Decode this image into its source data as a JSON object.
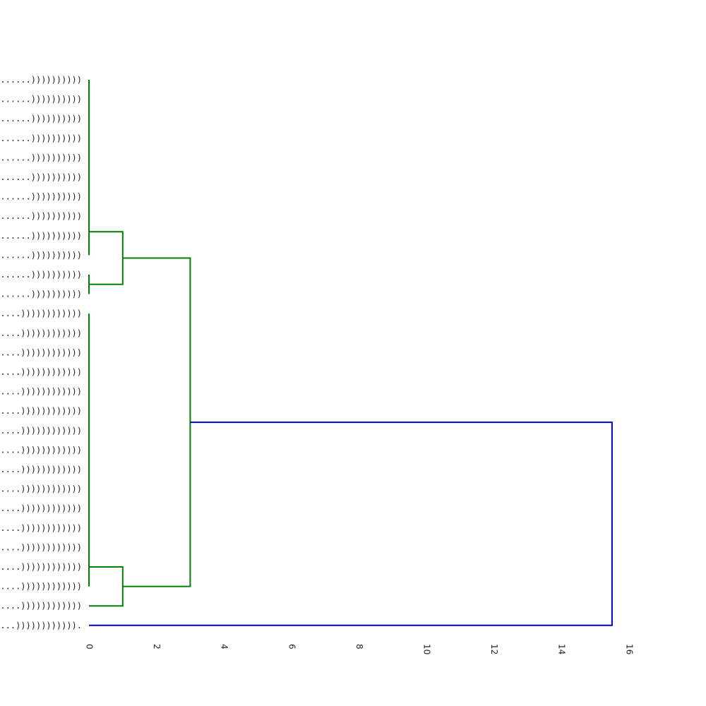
{
  "chart_data": {
    "type": "dendrogram",
    "orientation": "left",
    "xlim": [
      0,
      16
    ],
    "x_ticks": [
      0,
      2,
      4,
      6,
      8,
      10,
      12,
      14,
      16
    ],
    "leaves": [
      "(((.((.(.(((((......))))))))))",
      "(((.((.(.(((((......))))))))))",
      "(((.((.(.(((((......))))))))))",
      "(((.((.(.(((((......))))))))))",
      "(((.((.(.(((((......))))))))))",
      "(((.((.(.(((((......))))))))))",
      "(((.((.(.(((((......))))))))))",
      "(((.((.(.(((((......))))))))))",
      "(((.((.(.(((((......))))))))))",
      "(((.((.(.(((((......))))))))))",
      "((((.((.((((((......))))))))))",
      "((((.((.((((((......))))))))))",
      "((((((.((((.((((((....))))))))))))",
      "((((((.((((.((((((....))))))))))))",
      "((((((.((((.((((((....))))))))))))",
      "((((((.((((.((((((....))))))))))))",
      "((((((.((((.((((((....))))))))))))",
      "((((((.((((.((((((....))))))))))))",
      "((((((.((((.((((((....))))))))))))",
      "((((((.((((.((((((....))))))))))))",
      "((((((.((((.((((((....))))))))))))",
      "((((((.((((.((((((....))))))))))))",
      "((((((.((((.((((((....))))))))))))",
      "((((((.((((.((((((....))))))))))))",
      "((((((.((((.((((((....))))))))))))",
      "((((((.((((.((((((....))))))))))))",
      "((((((.((((.((((((....))))))))))))",
      "((((((.((.(.((((((....))))))))))))",
      "(((((((.(((((((((...))))))))))))."
    ],
    "merges": [
      {
        "a": "leaves 0-9",
        "b": "leaves 10-11",
        "height": 1.0
      },
      {
        "a": "leaves 12-26",
        "b": "leaf 27",
        "height": 1.0
      },
      {
        "a": "cluster 0-11",
        "b": "cluster 12-27",
        "height": 3.0
      },
      {
        "a": "cluster 0-27",
        "b": "leaf 28",
        "height": 15.5
      }
    ],
    "colors": {
      "cluster": "#008000",
      "root": "#0000cc"
    }
  }
}
